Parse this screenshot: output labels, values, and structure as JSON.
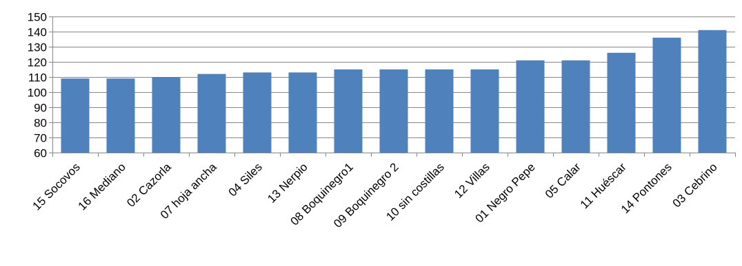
{
  "chart_data": {
    "type": "bar",
    "title": "",
    "xlabel": "",
    "ylabel": "",
    "ylim": [
      60,
      150
    ],
    "yticks": [
      60,
      70,
      80,
      90,
      100,
      110,
      120,
      130,
      140,
      150
    ],
    "grid": true,
    "legend": "none",
    "bar_color": "#4f81bd",
    "grid_color": "#868686",
    "categories": [
      "15 Socovos",
      "16 Mediano",
      "02 Cazorla",
      "07 hoja ancha",
      "04 Siles",
      "13 Nerpio",
      "08 Boquinegro1",
      "09 Boquinegro 2",
      "10 sin costillas",
      "12 Villas",
      "01 Negro Pepe",
      "05 Calar",
      "11 Huéscar",
      "14 Pontones",
      "03 Cebrino"
    ],
    "values": [
      109,
      109,
      110,
      112,
      113,
      113,
      115,
      115,
      115,
      115,
      121,
      121,
      126,
      136,
      141
    ]
  }
}
